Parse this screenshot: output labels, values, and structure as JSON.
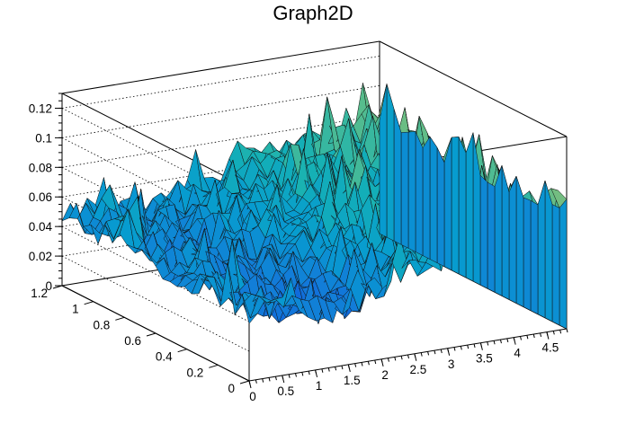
{
  "chart_data": {
    "type": "surface",
    "title": "Graph2D",
    "x_range": [
      0,
      4.8
    ],
    "y_range": [
      0,
      1.2
    ],
    "z_range": [
      0,
      0.13
    ],
    "x_ticks": [
      "0",
      "0.5",
      "1",
      "1.5",
      "2",
      "2.5",
      "3",
      "3.5",
      "4",
      "4.5"
    ],
    "y_ticks": [
      "0",
      "0.2",
      "0.4",
      "0.6",
      "0.8",
      "1",
      "1.2"
    ],
    "z_ticks": [
      "0",
      "0.02",
      "0.04",
      "0.06",
      "0.08",
      "0.1",
      "0.12"
    ],
    "grid": true,
    "palette": "kBird",
    "colors": {
      "low": "#352a87",
      "mid": "#21b1a5",
      "high": "#f9fb0e"
    },
    "surface_description_note": "",
    "z_profile_along_x": [
      0.05,
      0.045,
      0.04,
      0.045,
      0.05,
      0.06,
      0.065,
      0.07,
      0.075,
      0.08,
      0.085,
      0.095
    ],
    "z_profile_along_y": [
      0.05,
      0.045,
      0.04,
      0.035,
      0.04,
      0.05,
      0.06
    ]
  }
}
